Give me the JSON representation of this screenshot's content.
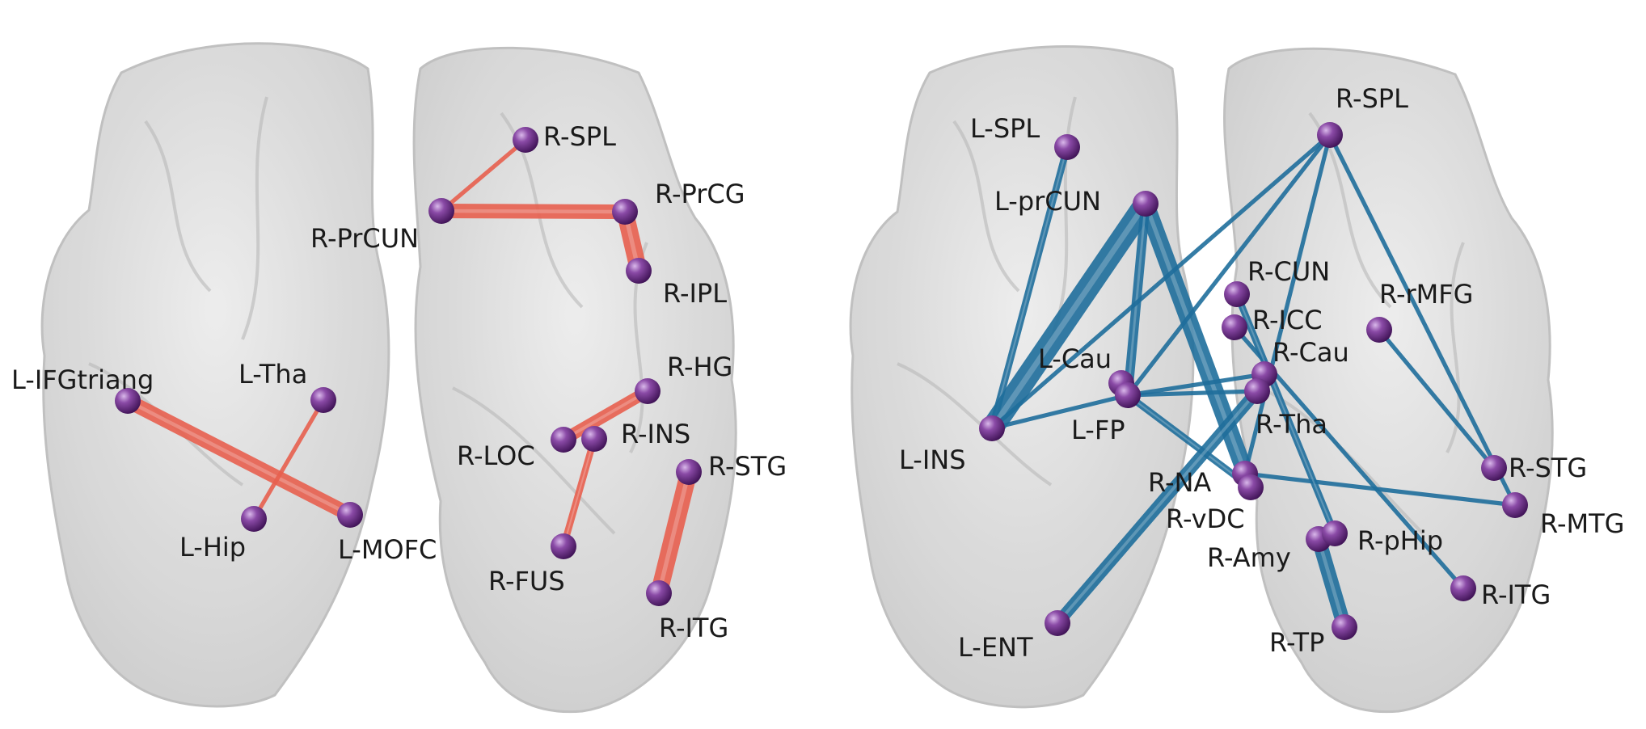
{
  "panels": [
    {
      "id": "left",
      "edge_color": "#e8604f",
      "nodes": [
        {
          "id": "R-SPL",
          "label": "R-SPL"
        },
        {
          "id": "R-PrCUN",
          "label": "R-PrCUN"
        },
        {
          "id": "R-PrCG",
          "label": "R-PrCG"
        },
        {
          "id": "R-IPL",
          "label": "R-IPL"
        },
        {
          "id": "L-IFGtriang",
          "label": "L-IFGtriang"
        },
        {
          "id": "L-Tha",
          "label": "L-Tha"
        },
        {
          "id": "L-Hip",
          "label": "L-Hip"
        },
        {
          "id": "L-MOFC",
          "label": "L-MOFC"
        },
        {
          "id": "R-HG",
          "label": "R-HG"
        },
        {
          "id": "R-LOC",
          "label": "R-LOC"
        },
        {
          "id": "R-INS",
          "label": "R-INS"
        },
        {
          "id": "R-STG",
          "label": "R-STG"
        },
        {
          "id": "R-FUS",
          "label": "R-FUS"
        },
        {
          "id": "R-ITG",
          "label": "R-ITG"
        }
      ],
      "edges": [
        {
          "from": "R-SPL",
          "to": "R-PrCUN",
          "weight": 1
        },
        {
          "from": "R-PrCUN",
          "to": "R-PrCG",
          "weight": 5
        },
        {
          "from": "R-PrCG",
          "to": "R-IPL",
          "weight": 6
        },
        {
          "from": "L-IFGtriang",
          "to": "L-MOFC",
          "weight": 5
        },
        {
          "from": "L-Tha",
          "to": "L-Hip",
          "weight": 1
        },
        {
          "from": "R-LOC",
          "to": "R-HG",
          "weight": 4
        },
        {
          "from": "R-INS",
          "to": "R-FUS",
          "weight": 2
        },
        {
          "from": "R-STG",
          "to": "R-ITG",
          "weight": 6
        }
      ]
    },
    {
      "id": "right",
      "edge_color": "#1f6e9c",
      "nodes": [
        {
          "id": "L-SPL",
          "label": "L-SPL"
        },
        {
          "id": "L-prCUN",
          "label": "L-prCUN"
        },
        {
          "id": "R-SPL",
          "label": "R-SPL"
        },
        {
          "id": "R-CUN",
          "label": "R-CUN"
        },
        {
          "id": "R-rMFG",
          "label": "R-rMFG"
        },
        {
          "id": "R-ICC",
          "label": "R-ICC"
        },
        {
          "id": "L-Cau",
          "label": "L-Cau"
        },
        {
          "id": "R-Cau",
          "label": "R-Cau"
        },
        {
          "id": "L-FP",
          "label": "L-FP"
        },
        {
          "id": "R-Tha",
          "label": "R-Tha"
        },
        {
          "id": "L-INS",
          "label": "L-INS"
        },
        {
          "id": "R-NA",
          "label": "R-NA"
        },
        {
          "id": "R-vDC",
          "label": "R-vDC"
        },
        {
          "id": "R-STG",
          "label": "R-STG"
        },
        {
          "id": "R-MTG",
          "label": "R-MTG"
        },
        {
          "id": "R-Amy",
          "label": "R-Amy"
        },
        {
          "id": "R-pHip",
          "label": "R-pHip"
        },
        {
          "id": "R-ITG",
          "label": "R-ITG"
        },
        {
          "id": "L-ENT",
          "label": "L-ENT"
        },
        {
          "id": "R-TP",
          "label": "R-TP"
        }
      ],
      "edges": [
        {
          "from": "L-SPL",
          "to": "L-INS",
          "weight": 2
        },
        {
          "from": "L-prCUN",
          "to": "L-INS",
          "weight": 8
        },
        {
          "from": "L-prCUN",
          "to": "R-vDC",
          "weight": 6
        },
        {
          "from": "L-prCUN",
          "to": "L-FP",
          "weight": 3
        },
        {
          "from": "L-INS",
          "to": "L-FP",
          "weight": 1
        },
        {
          "from": "L-INS",
          "to": "R-SPL",
          "weight": 1
        },
        {
          "from": "R-SPL",
          "to": "L-FP",
          "weight": 1
        },
        {
          "from": "R-SPL",
          "to": "R-MTG",
          "weight": 1
        },
        {
          "from": "R-SPL",
          "to": "R-NA",
          "weight": 1
        },
        {
          "from": "R-rMFG",
          "to": "R-STG",
          "weight": 1
        },
        {
          "from": "L-FP",
          "to": "R-Tha",
          "weight": 1
        },
        {
          "from": "L-FP",
          "to": "R-vDC",
          "weight": 2
        },
        {
          "from": "L-FP",
          "to": "R-Cau",
          "weight": 1
        },
        {
          "from": "R-NA",
          "to": "R-MTG",
          "weight": 1
        },
        {
          "from": "R-ICC",
          "to": "R-ITG",
          "weight": 1
        },
        {
          "from": "R-CUN",
          "to": "R-pHip",
          "weight": 2
        },
        {
          "from": "R-Tha",
          "to": "L-ENT",
          "weight": 4
        },
        {
          "from": "R-Amy",
          "to": "R-TP",
          "weight": 5
        }
      ]
    }
  ]
}
